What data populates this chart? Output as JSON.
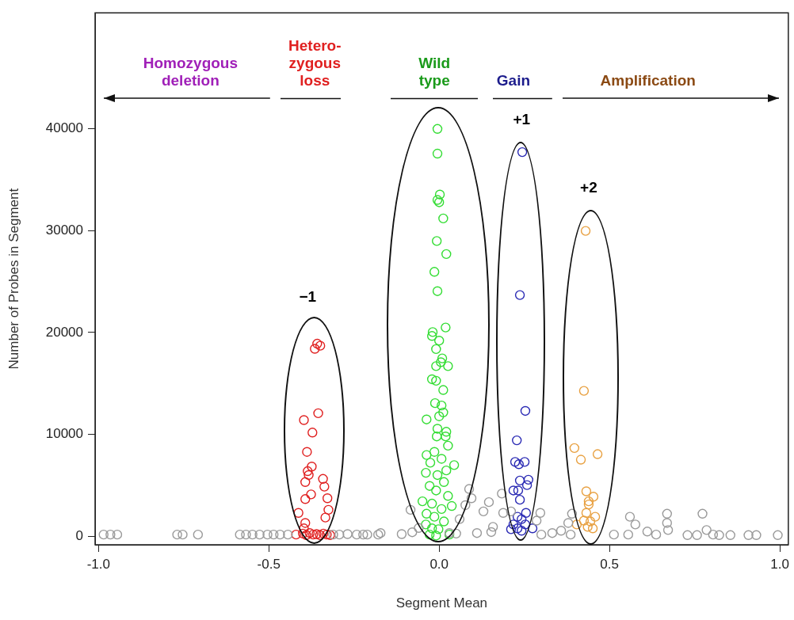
{
  "chart_data": {
    "type": "scatter",
    "xlabel": "Segment Mean",
    "ylabel": "Number of Probes in Segment",
    "xlim": [
      -1.01,
      1.025
    ],
    "ylim": [
      -850,
      51400
    ],
    "xticks": [
      {
        "value": -1,
        "label": "-1.0"
      },
      {
        "value": -0.5,
        "label": "-0.5"
      },
      {
        "value": 0,
        "label": "0.0"
      },
      {
        "value": 0.5,
        "label": "0.5"
      },
      {
        "value": 1,
        "label": "1.0"
      }
    ],
    "yticks": [
      0,
      10000,
      20000,
      30000,
      40000
    ],
    "grid": false,
    "legend": false,
    "marker": "circle",
    "annotations": [
      "Homozygous\ndeletion",
      "Hetero-\nzygous\nloss",
      "Wild\ntype",
      "Gain",
      "Amplification",
      "−1",
      "+1",
      "+2"
    ],
    "series": [
      {
        "color": "#9a9a9a",
        "x": [
          -0.985,
          -0.965,
          -0.945,
          -0.769,
          -0.753,
          -0.708,
          -0.585,
          -0.567,
          -0.548,
          -0.527,
          -0.504,
          -0.486,
          -0.467,
          -0.444,
          -0.311,
          -0.293,
          -0.269,
          -0.242,
          -0.223,
          -0.211,
          -0.179,
          -0.172,
          -0.11,
          -0.084,
          -0.079,
          -0.06,
          0.03,
          0.05,
          0.06,
          0.077,
          0.088,
          0.095,
          0.111,
          0.13,
          0.146,
          0.153,
          0.158,
          0.184,
          0.188,
          0.211,
          0.286,
          0.297,
          0.3,
          0.332,
          0.358,
          0.379,
          0.386,
          0.39,
          0.513,
          0.555,
          0.56,
          0.576,
          0.611,
          0.637,
          0.669,
          0.669,
          0.672,
          0.729,
          0.757,
          0.773,
          0.785,
          0.804,
          0.822,
          0.855,
          0.908,
          0.931,
          0.994
        ],
        "values": [
          150,
          150,
          150,
          150,
          150,
          150,
          150,
          150,
          150,
          150,
          150,
          150,
          150,
          150,
          150,
          150,
          200,
          150,
          150,
          150,
          150,
          300,
          200,
          2580,
          380,
          800,
          300,
          250,
          1670,
          3040,
          4630,
          3720,
          300,
          2430,
          3340,
          400,
          910,
          4180,
          2280,
          2430,
          1520,
          2280,
          150,
          300,
          530,
          1290,
          150,
          2200,
          150,
          150,
          1900,
          1140,
          450,
          150,
          2200,
          1290,
          600,
          100,
          100,
          2200,
          600,
          150,
          100,
          100,
          100,
          100,
          100
        ]
      },
      {
        "color": "#e02020",
        "x": [
          -0.358,
          -0.349,
          -0.365,
          -0.355,
          -0.397,
          -0.372,
          -0.388,
          -0.374,
          -0.386,
          -0.383,
          -0.341,
          -0.393,
          -0.337,
          -0.376,
          -0.393,
          -0.328,
          -0.413,
          -0.325,
          -0.334,
          -0.393,
          -0.397,
          -0.42,
          -0.4,
          -0.39,
          -0.38,
          -0.37,
          -0.36,
          -0.35,
          -0.34,
          -0.33,
          -0.32
        ],
        "values": [
          18900,
          18700,
          18400,
          12070,
          11400,
          10170,
          8270,
          6830,
          6380,
          6000,
          5620,
          5310,
          4860,
          4100,
          3640,
          3720,
          2280,
          2580,
          1820,
          1290,
          760,
          150,
          250,
          100,
          300,
          150,
          200,
          100,
          250,
          150,
          100
        ]
      },
      {
        "color": "#33dd33",
        "x": [
          -0.005,
          -0.005,
          0.002,
          -0.005,
          0.0,
          0.012,
          -0.007,
          0.021,
          -0.014,
          -0.005,
          0.019,
          -0.019,
          -0.021,
          0.0,
          -0.009,
          0.009,
          -0.009,
          0.026,
          0.005,
          -0.021,
          -0.009,
          0.012,
          -0.012,
          0.007,
          0.012,
          -0.037,
          0.0,
          -0.005,
          0.021,
          0.019,
          -0.007,
          0.026,
          -0.037,
          -0.014,
          0.007,
          0.044,
          -0.026,
          0.021,
          -0.039,
          -0.005,
          0.014,
          -0.028,
          -0.009,
          0.026,
          -0.049,
          -0.021,
          0.007,
          0.037,
          -0.037,
          -0.014,
          0.014,
          -0.039,
          -0.021,
          -0.002,
          0.03,
          -0.028,
          -0.009
        ],
        "values": [
          40000,
          37570,
          33550,
          33020,
          32790,
          31200,
          28990,
          27700,
          25960,
          24060,
          20490,
          20040,
          19660,
          19200,
          18370,
          17460,
          16700,
          16700,
          17080,
          15410,
          15260,
          14350,
          13060,
          12830,
          12150,
          11460,
          11770,
          10550,
          10250,
          9790,
          9790,
          8880,
          7970,
          8270,
          7590,
          6980,
          7210,
          6450,
          6220,
          6000,
          5310,
          4930,
          4480,
          3950,
          3420,
          3190,
          2660,
          2960,
          2200,
          1900,
          1440,
          1140,
          760,
          680,
          150,
          150,
          50
        ]
      },
      {
        "color": "#2a2ab4",
        "x": [
          0.244,
          0.237,
          0.253,
          0.228,
          0.223,
          0.234,
          0.251,
          0.237,
          0.262,
          0.258,
          0.218,
          0.232,
          0.237,
          0.255,
          0.23,
          0.242,
          0.218,
          0.253,
          0.23,
          0.211,
          0.274,
          0.242
        ],
        "values": [
          37720,
          23680,
          12300,
          9410,
          7290,
          7060,
          7290,
          5460,
          5540,
          5010,
          4480,
          4480,
          3570,
          2280,
          1900,
          1670,
          1140,
          1140,
          760,
          680,
          760,
          530
        ]
      },
      {
        "color": "#e8a040",
        "x": [
          0.43,
          0.425,
          0.397,
          0.465,
          0.416,
          0.432,
          0.453,
          0.439,
          0.439,
          0.432,
          0.458,
          0.425,
          0.444,
          0.404,
          0.451,
          0.436
        ],
        "values": [
          29980,
          14270,
          8650,
          8050,
          7510,
          4400,
          3870,
          3420,
          3110,
          2280,
          1900,
          1520,
          1440,
          1140,
          760,
          910
        ]
      }
    ]
  }
}
